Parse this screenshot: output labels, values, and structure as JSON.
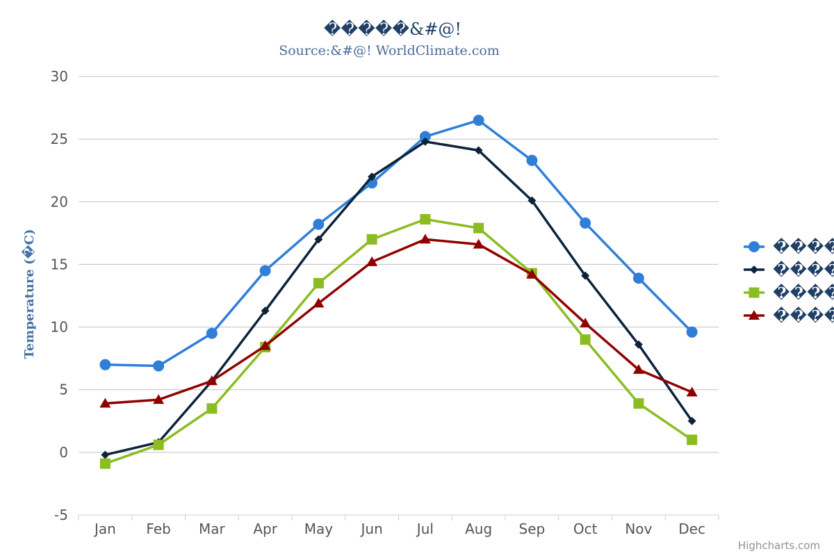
{
  "chart_data": {
    "type": "line",
    "title": "�����&#@!",
    "subtitle": "Source:&#@! WorldClimate.com",
    "ylabel": "Temperature (�C)",
    "xlabel": "",
    "categories": [
      "Jan",
      "Feb",
      "Mar",
      "Apr",
      "May",
      "Jun",
      "Jul",
      "Aug",
      "Sep",
      "Oct",
      "Nov",
      "Dec"
    ],
    "ylim": [
      -5,
      30
    ],
    "yticks": [
      -5,
      0,
      5,
      10,
      15,
      20,
      25,
      30
    ],
    "grid": true,
    "legend_position": "right",
    "series": [
      {
        "name": "����",
        "color": "#2f7ed8",
        "marker": "circle",
        "values": [
          7.0,
          6.9,
          9.5,
          14.5,
          18.2,
          21.5,
          25.2,
          26.5,
          23.3,
          18.3,
          13.9,
          9.6
        ]
      },
      {
        "name": "����",
        "color": "#0d233a",
        "marker": "diamond",
        "values": [
          -0.2,
          0.8,
          5.7,
          11.3,
          17.0,
          22.0,
          24.8,
          24.1,
          20.1,
          14.1,
          8.6,
          2.5
        ]
      },
      {
        "name": "����",
        "color": "#8bbc21",
        "marker": "square",
        "values": [
          -0.9,
          0.6,
          3.5,
          8.4,
          13.5,
          17.0,
          18.6,
          17.9,
          14.3,
          9.0,
          3.9,
          1.0
        ]
      },
      {
        "name": "����",
        "color": "#910000",
        "marker": "triangle",
        "values": [
          3.9,
          4.2,
          5.7,
          8.5,
          11.9,
          15.2,
          17.0,
          16.6,
          14.2,
          10.3,
          6.6,
          4.8
        ]
      }
    ]
  },
  "credits": "Highcharts.com"
}
